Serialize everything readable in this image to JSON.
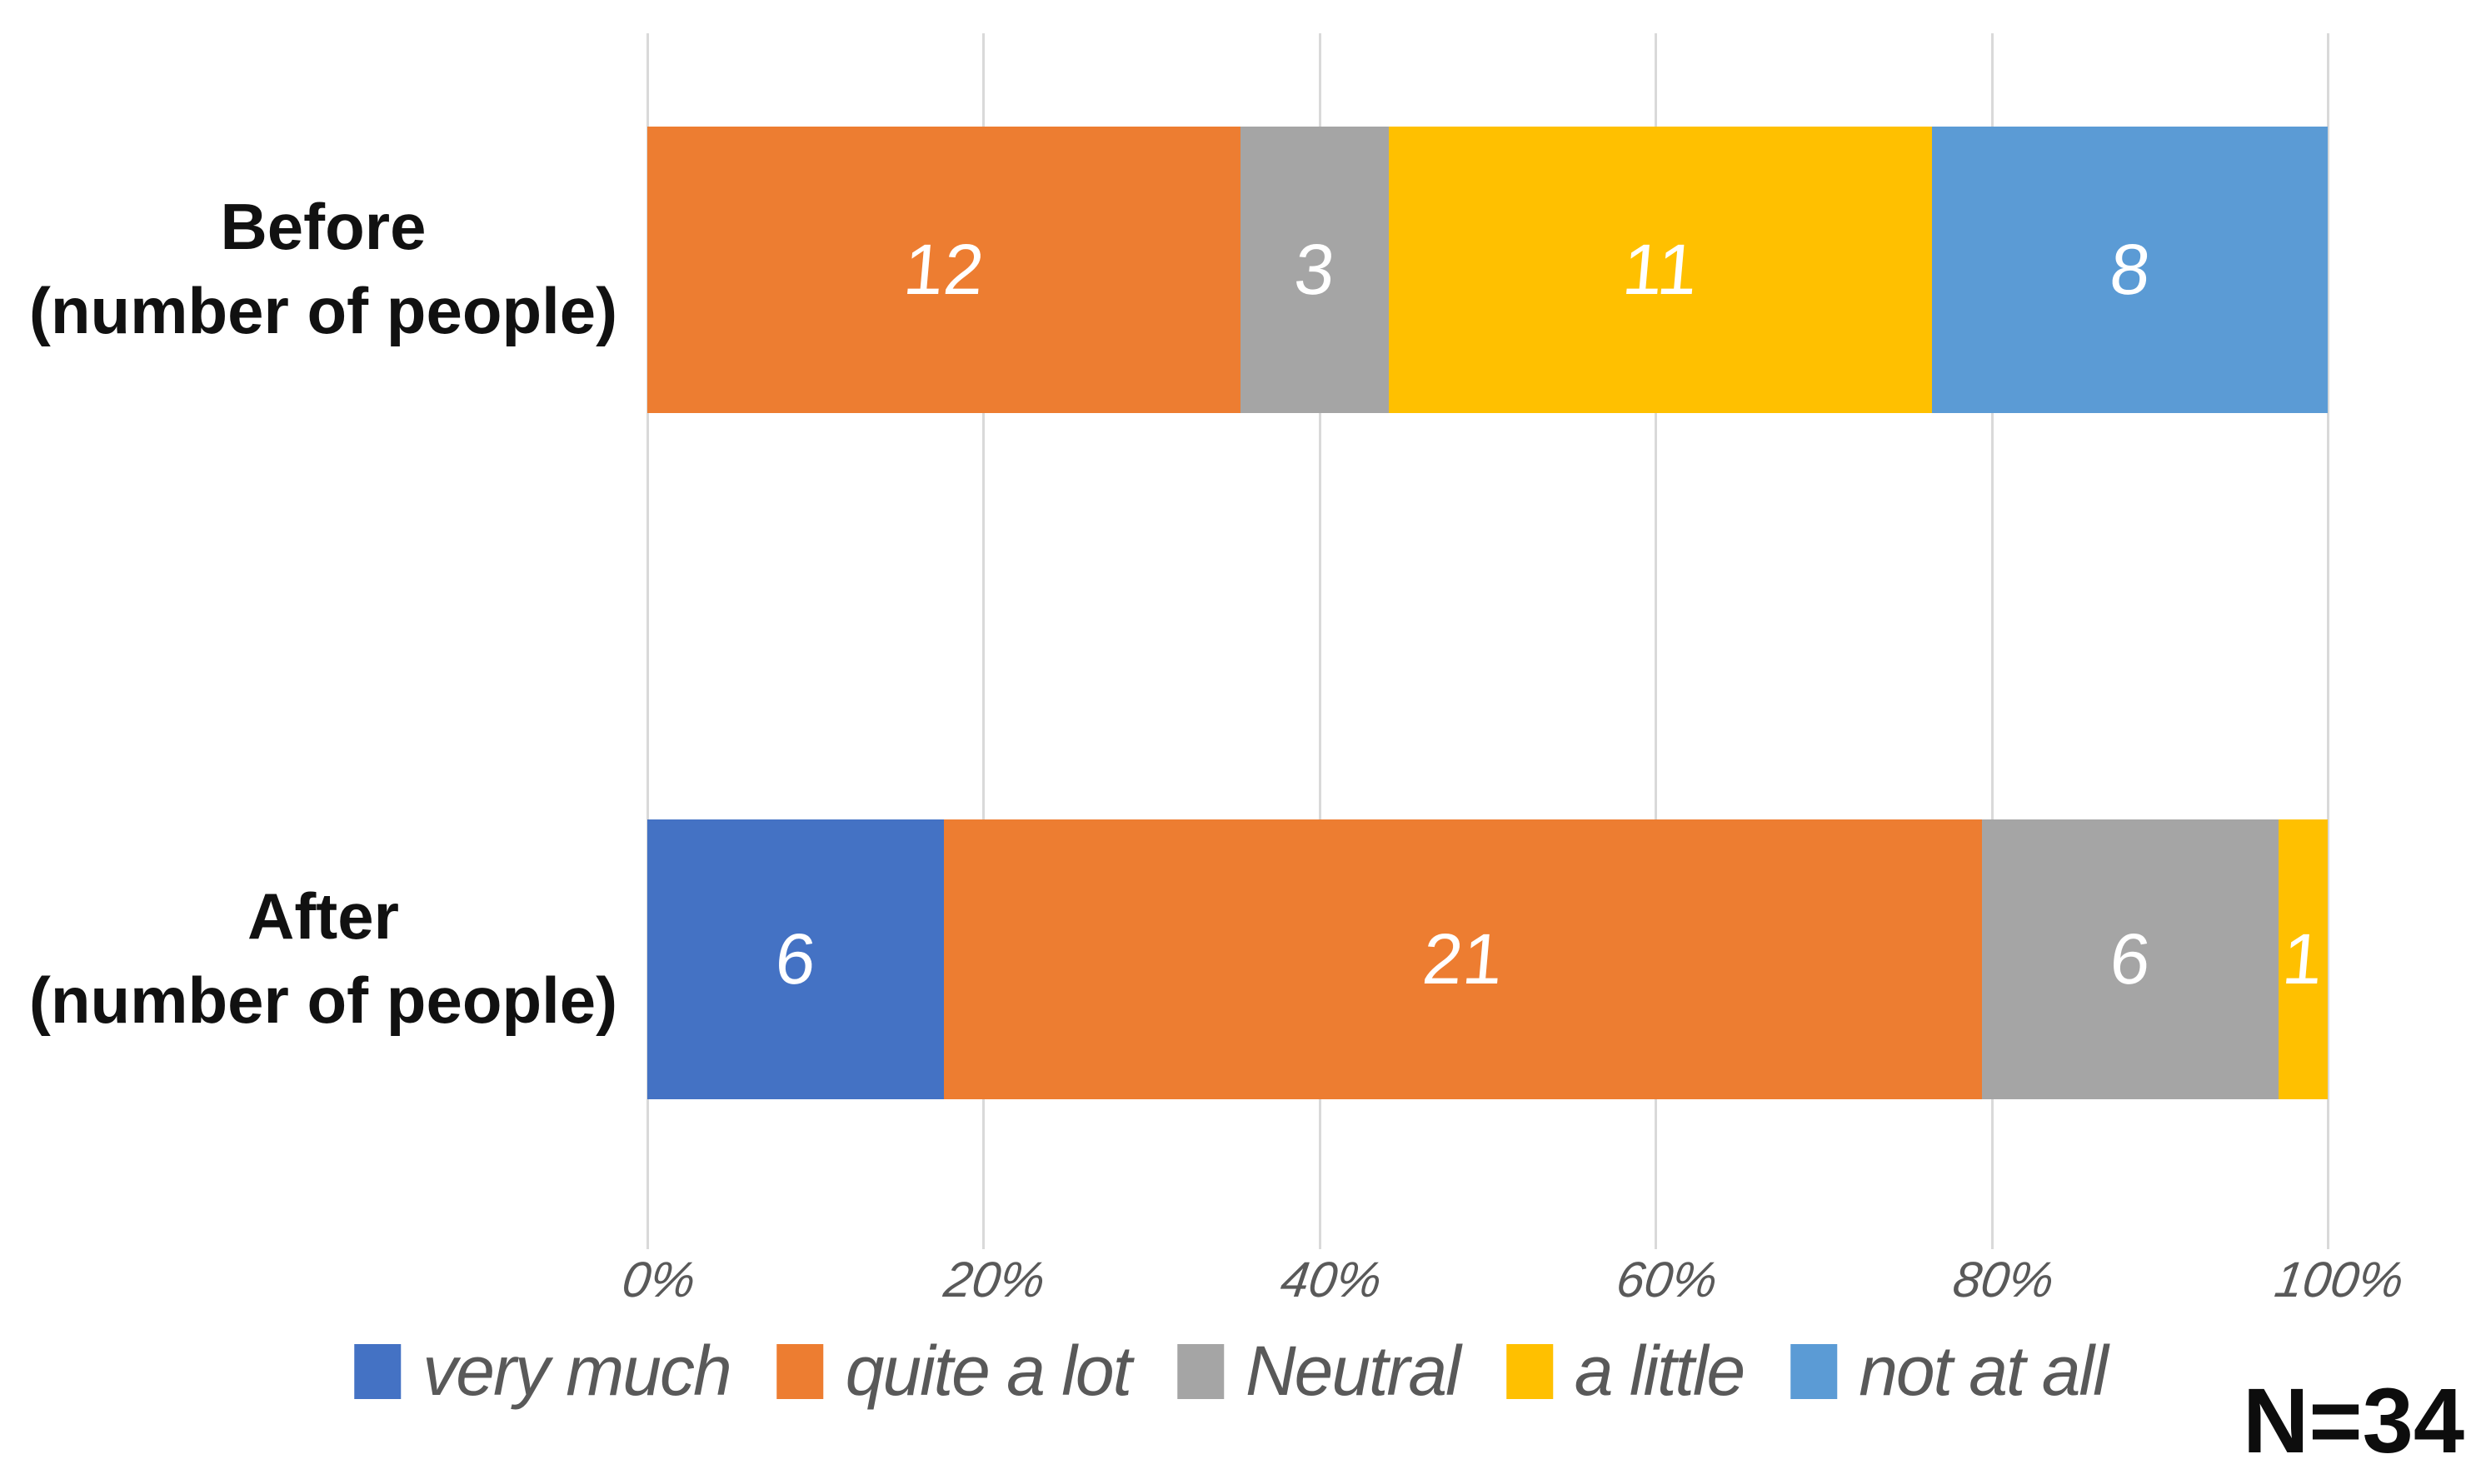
{
  "palette": {
    "very_much": "#4472C4",
    "quite_a_lot": "#ED7D31",
    "neutral": "#A5A5A5",
    "a_little": "#FFC000",
    "not_at_all": "#5B9BD5",
    "gridline": "#D9D9D9",
    "axis_text": "#595959",
    "category_text": "#111111",
    "data_label_text": "#FFFFFF",
    "background": "#FFFFFF"
  },
  "chart_data": {
    "type": "bar",
    "orientation": "horizontal",
    "stacked": true,
    "title": "",
    "xlabel": "",
    "ylabel": "",
    "categories": [
      "Before (number of people)",
      "After (number of people)"
    ],
    "category_display_lines": [
      [
        "Before",
        "(number of people)"
      ],
      [
        "After",
        "(number of people)"
      ]
    ],
    "series": [
      {
        "name": "very much",
        "color": "#4472C4",
        "values": [
          0,
          6
        ]
      },
      {
        "name": "quite a lot",
        "color": "#ED7D31",
        "values": [
          12,
          21
        ]
      },
      {
        "name": "Neutral",
        "color": "#A5A5A5",
        "values": [
          3,
          6
        ]
      },
      {
        "name": "a little",
        "color": "#FFC000",
        "values": [
          11,
          1
        ]
      },
      {
        "name": "not at all",
        "color": "#5B9BD5",
        "values": [
          8,
          0
        ]
      }
    ],
    "total_per_category": 34,
    "x_axis": {
      "ticks": [
        "0%",
        "20%",
        "40%",
        "60%",
        "80%",
        "100%"
      ],
      "min": 0,
      "max": 100,
      "unit": "%"
    },
    "grid": true,
    "legend_position": "bottom",
    "data_labels": "segment values shown in white inside bars; zero values hidden",
    "annotation": "N=34"
  }
}
